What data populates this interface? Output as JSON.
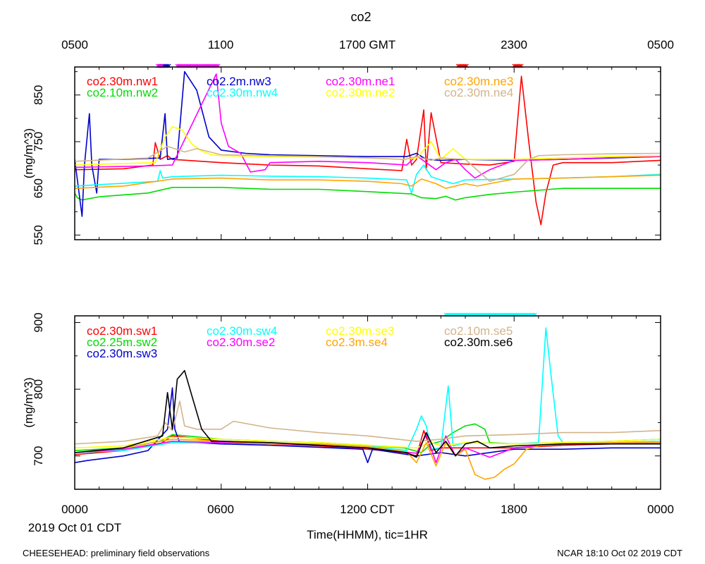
{
  "title": "co2",
  "top_time_axis": {
    "label_suffix": "GMT",
    "ticks": [
      "0500",
      "1100",
      "1700 GMT",
      "2300",
      "0500"
    ]
  },
  "bottom_time_axis": {
    "ticks": [
      "0000",
      "0600",
      "1200 CDT",
      "1800",
      "0000"
    ],
    "date_label": "2019 Oct 01 CDT",
    "xlabel": "Time(HHMM), tic=1HR"
  },
  "footer": {
    "left": "CHEESEHEAD: preliminary field observations",
    "right": "NCAR 18:10 Oct 02 2019 CDT"
  },
  "chart_data": [
    {
      "type": "line",
      "panel": "upper",
      "ylabel": "(mg/m^3)",
      "xunit": "hours since 2019-10-01 00:00 CDT",
      "xlim": [
        0,
        24
      ],
      "ylim": [
        540,
        910
      ],
      "yticks": [
        550,
        650,
        750,
        850
      ],
      "series": [
        {
          "name": "co2.30m.nw1",
          "color": "#ff0000",
          "x": [
            0,
            2,
            3.2,
            3.3,
            3.5,
            3.8,
            4,
            6,
            8,
            10,
            12,
            13.4,
            13.6,
            13.8,
            14,
            14.3,
            14.4,
            14.6,
            15,
            16,
            17,
            18,
            18.3,
            18.6,
            18.9,
            19.1,
            19.3,
            19.6,
            20,
            22,
            24
          ],
          "y": [
            690,
            692,
            700,
            748,
            712,
            720,
            712,
            705,
            700,
            698,
            692,
            688,
            755,
            700,
            712,
            818,
            690,
            812,
            705,
            702,
            700,
            708,
            890,
            750,
            620,
            572,
            640,
            700,
            705,
            705,
            710
          ]
        },
        {
          "name": "co2.10m.nw2",
          "color": "#00dd00",
          "x": [
            0,
            0.1,
            0.3,
            1,
            2,
            3,
            4,
            6,
            8,
            10,
            12,
            13.8,
            14.2,
            14.8,
            15.2,
            15.6,
            16,
            17,
            18,
            20,
            22,
            24
          ],
          "y": [
            640,
            630,
            625,
            632,
            636,
            640,
            652,
            652,
            648,
            648,
            643,
            638,
            630,
            628,
            633,
            625,
            630,
            637,
            642,
            650,
            650,
            650
          ]
        },
        {
          "name": "co2.2m.nw3",
          "color": "#0000cc",
          "x": [
            0,
            0.3,
            0.4,
            0.6,
            0.7,
            0.9,
            1,
            2,
            3.5,
            3.7,
            3.8,
            4.2,
            4.5,
            5,
            5.5,
            6,
            7,
            8,
            10,
            12,
            13.6,
            14,
            14.4,
            15,
            16,
            18,
            20,
            22,
            24
          ],
          "y": [
            712,
            590,
            700,
            810,
            700,
            640,
            712,
            712,
            715,
            810,
            712,
            715,
            900,
            860,
            760,
            732,
            725,
            722,
            720,
            718,
            718,
            725,
            712,
            710,
            712,
            710,
            712,
            715,
            718
          ]
        },
        {
          "name": "co2.30m.nw4",
          "color": "#00ffff",
          "x": [
            0,
            3.4,
            3.5,
            3.6,
            4,
            6,
            8,
            10,
            12,
            13.6,
            13.8,
            14,
            14.3,
            14.6,
            15,
            15.5,
            16,
            18,
            20,
            22,
            24
          ],
          "y": [
            655,
            665,
            688,
            672,
            675,
            678,
            676,
            675,
            672,
            668,
            640,
            680,
            700,
            675,
            668,
            660,
            668,
            670,
            672,
            675,
            680
          ]
        },
        {
          "name": "co2.30m.ne1",
          "color": "#ff00ff",
          "x": [
            0,
            3,
            4,
            5.8,
            6,
            6.3,
            6.8,
            7.2,
            7.8,
            8,
            10,
            12,
            13.6,
            14,
            14.8,
            15.2,
            15.6,
            16,
            16.4,
            17,
            18,
            20,
            22,
            24
          ],
          "y": [
            695,
            698,
            700,
            895,
            790,
            740,
            725,
            685,
            690,
            705,
            708,
            705,
            700,
            720,
            690,
            705,
            712,
            690,
            672,
            690,
            710,
            712,
            716,
            718
          ]
        },
        {
          "name": "co2.30m.ne2",
          "color": "#ffff00",
          "x": [
            0,
            3.3,
            3.7,
            4,
            4.4,
            4.8,
            5.2,
            5.6,
            6,
            8,
            10,
            12,
            13.5,
            14,
            14.6,
            15,
            15.5,
            16,
            18,
            20,
            22,
            24
          ],
          "y": [
            700,
            705,
            760,
            782,
            775,
            745,
            730,
            722,
            720,
            718,
            717,
            715,
            712,
            715,
            750,
            712,
            735,
            712,
            712,
            715,
            718,
            720
          ]
        },
        {
          "name": "co2.30m.ne3",
          "color": "#ffa500",
          "x": [
            0,
            2,
            4,
            6,
            8,
            10,
            12,
            13.4,
            13.8,
            14.2,
            14.8,
            15.2,
            16,
            16.5,
            17,
            18,
            20,
            22,
            24
          ],
          "y": [
            650,
            655,
            670,
            672,
            668,
            668,
            665,
            660,
            655,
            670,
            660,
            650,
            660,
            655,
            660,
            670,
            672,
            675,
            678
          ]
        },
        {
          "name": "co2.30m.ne4",
          "color": "#d2b48c",
          "x": [
            0,
            3,
            3.8,
            4.5,
            5,
            6,
            8,
            10,
            12,
            13.5,
            14,
            14.6,
            15,
            16,
            17,
            18,
            18.6,
            19,
            20,
            22,
            24
          ],
          "y": [
            708,
            715,
            740,
            728,
            735,
            722,
            720,
            718,
            715,
            712,
            718,
            710,
            715,
            712,
            665,
            680,
            712,
            720,
            722,
            724,
            725
          ]
        }
      ],
      "wind_flags": [
        {
          "color": "#0000cc",
          "from": 3.5,
          "to": 3.9
        },
        {
          "color": "#ff00ff",
          "from": 3.4,
          "to": 3.6
        },
        {
          "color": "#ff00ff",
          "from": 4.2,
          "to": 5.9
        },
        {
          "color": "#ff0000",
          "from": 15.7,
          "to": 16.1
        },
        {
          "color": "#ff0000",
          "from": 18.0,
          "to": 18.3
        }
      ]
    },
    {
      "type": "line",
      "panel": "lower",
      "ylabel": "(mg/m^3)",
      "xunit": "hours since 2019-10-01 00:00 CDT",
      "xlim": [
        0,
        24
      ],
      "ylim": [
        650,
        910
      ],
      "yticks": [
        700,
        800,
        900
      ],
      "series": [
        {
          "name": "co2.30m.sw1",
          "color": "#ff0000",
          "x": [
            0,
            2,
            3.5,
            4,
            6,
            8,
            10,
            12,
            13.5,
            14,
            14.3,
            14.6,
            15,
            16,
            18,
            20,
            22,
            24
          ],
          "y": [
            702,
            708,
            718,
            730,
            722,
            718,
            715,
            710,
            705,
            700,
            738,
            708,
            712,
            712,
            712,
            716,
            718,
            720
          ]
        },
        {
          "name": "co2.25m.sw2",
          "color": "#00dd00",
          "x": [
            0,
            2,
            3.5,
            4,
            6,
            8,
            10,
            12,
            13.5,
            14.2,
            14.6,
            15,
            15.5,
            16,
            16.4,
            16.8,
            17,
            18,
            20,
            22,
            24
          ],
          "y": [
            708,
            712,
            722,
            732,
            725,
            722,
            720,
            716,
            712,
            705,
            718,
            722,
            735,
            745,
            748,
            740,
            720,
            718,
            720,
            722,
            725
          ]
        },
        {
          "name": "co2.30m.sw3",
          "color": "#0000cc",
          "x": [
            0,
            0.5,
            2,
            3,
            3.8,
            4,
            4.1,
            4.3,
            5,
            6,
            8,
            10,
            11.8,
            12,
            12.2,
            14,
            15,
            16,
            18,
            20,
            22,
            24
          ],
          "y": [
            690,
            693,
            700,
            708,
            740,
            802,
            740,
            720,
            720,
            718,
            716,
            713,
            710,
            690,
            710,
            700,
            705,
            700,
            710,
            710,
            712,
            712
          ]
        },
        {
          "name": "co2.30m.sw4",
          "color": "#00ffff",
          "x": [
            0,
            2,
            4,
            6,
            8,
            10,
            12,
            13.6,
            14,
            14.2,
            14.4,
            14.6,
            15,
            15.3,
            15.5,
            16,
            18,
            19,
            19.3,
            19.5,
            19.8,
            20,
            22,
            24
          ],
          "y": [
            705,
            708,
            720,
            720,
            718,
            718,
            715,
            708,
            740,
            760,
            745,
            710,
            712,
            805,
            715,
            720,
            718,
            720,
            892,
            825,
            730,
            720,
            720,
            722
          ]
        },
        {
          "name": "co2.30m.se2",
          "color": "#ff00ff",
          "x": [
            0,
            2,
            4,
            6,
            8,
            10,
            12,
            14,
            14.4,
            14.8,
            15.2,
            15.6,
            16,
            16.5,
            17,
            17.5,
            18,
            19,
            20,
            22,
            24
          ],
          "y": [
            705,
            710,
            722,
            720,
            718,
            716,
            712,
            704,
            732,
            690,
            730,
            700,
            712,
            705,
            698,
            705,
            712,
            715,
            718,
            718,
            720
          ]
        },
        {
          "name": "co2.30m.se3",
          "color": "#ffff00",
          "x": [
            0,
            2,
            4,
            6,
            8,
            10,
            12,
            14,
            14.6,
            15,
            16,
            18,
            20,
            22,
            24
          ],
          "y": [
            712,
            715,
            728,
            725,
            722,
            720,
            716,
            712,
            720,
            715,
            720,
            718,
            720,
            722,
            725
          ]
        },
        {
          "name": "co2.3m.se4",
          "color": "#ffa500",
          "x": [
            0,
            2,
            4,
            6,
            8,
            10,
            12,
            13.6,
            14,
            14.4,
            14.8,
            15.2,
            15.6,
            16,
            16.4,
            16.8,
            17.2,
            17.6,
            18,
            18.5,
            19,
            20,
            22,
            24
          ],
          "y": [
            705,
            712,
            725,
            722,
            718,
            718,
            714,
            706,
            690,
            720,
            685,
            720,
            700,
            710,
            672,
            665,
            668,
            680,
            688,
            710,
            715,
            718,
            720,
            720
          ]
        },
        {
          "name": "co2.10m.se5",
          "color": "#d2b48c",
          "x": [
            0,
            2,
            3.4,
            3.7,
            4,
            4.3,
            4.5,
            5,
            6,
            6.5,
            8,
            10,
            12,
            14,
            15,
            16,
            18,
            20,
            22,
            24
          ],
          "y": [
            718,
            722,
            730,
            750,
            738,
            782,
            745,
            740,
            740,
            752,
            742,
            735,
            730,
            722,
            725,
            730,
            732,
            735,
            735,
            738
          ]
        },
        {
          "name": "co2.30m.se6",
          "color": "#000000",
          "x": [
            0,
            2,
            3.6,
            3.8,
            4,
            4.2,
            4.5,
            4.8,
            5.2,
            5.6,
            6,
            8,
            10,
            12,
            13.6,
            14,
            14.4,
            14.8,
            15.2,
            15.6,
            16,
            16.5,
            17,
            18,
            20,
            22,
            24
          ],
          "y": [
            705,
            712,
            730,
            795,
            740,
            815,
            828,
            790,
            740,
            722,
            722,
            720,
            716,
            712,
            705,
            698,
            735,
            705,
            722,
            700,
            718,
            722,
            712,
            715,
            718,
            718,
            718
          ]
        }
      ],
      "wind_flags": [
        {
          "color": "#00ffff",
          "from": 15.2,
          "to": 18.9
        }
      ]
    }
  ]
}
